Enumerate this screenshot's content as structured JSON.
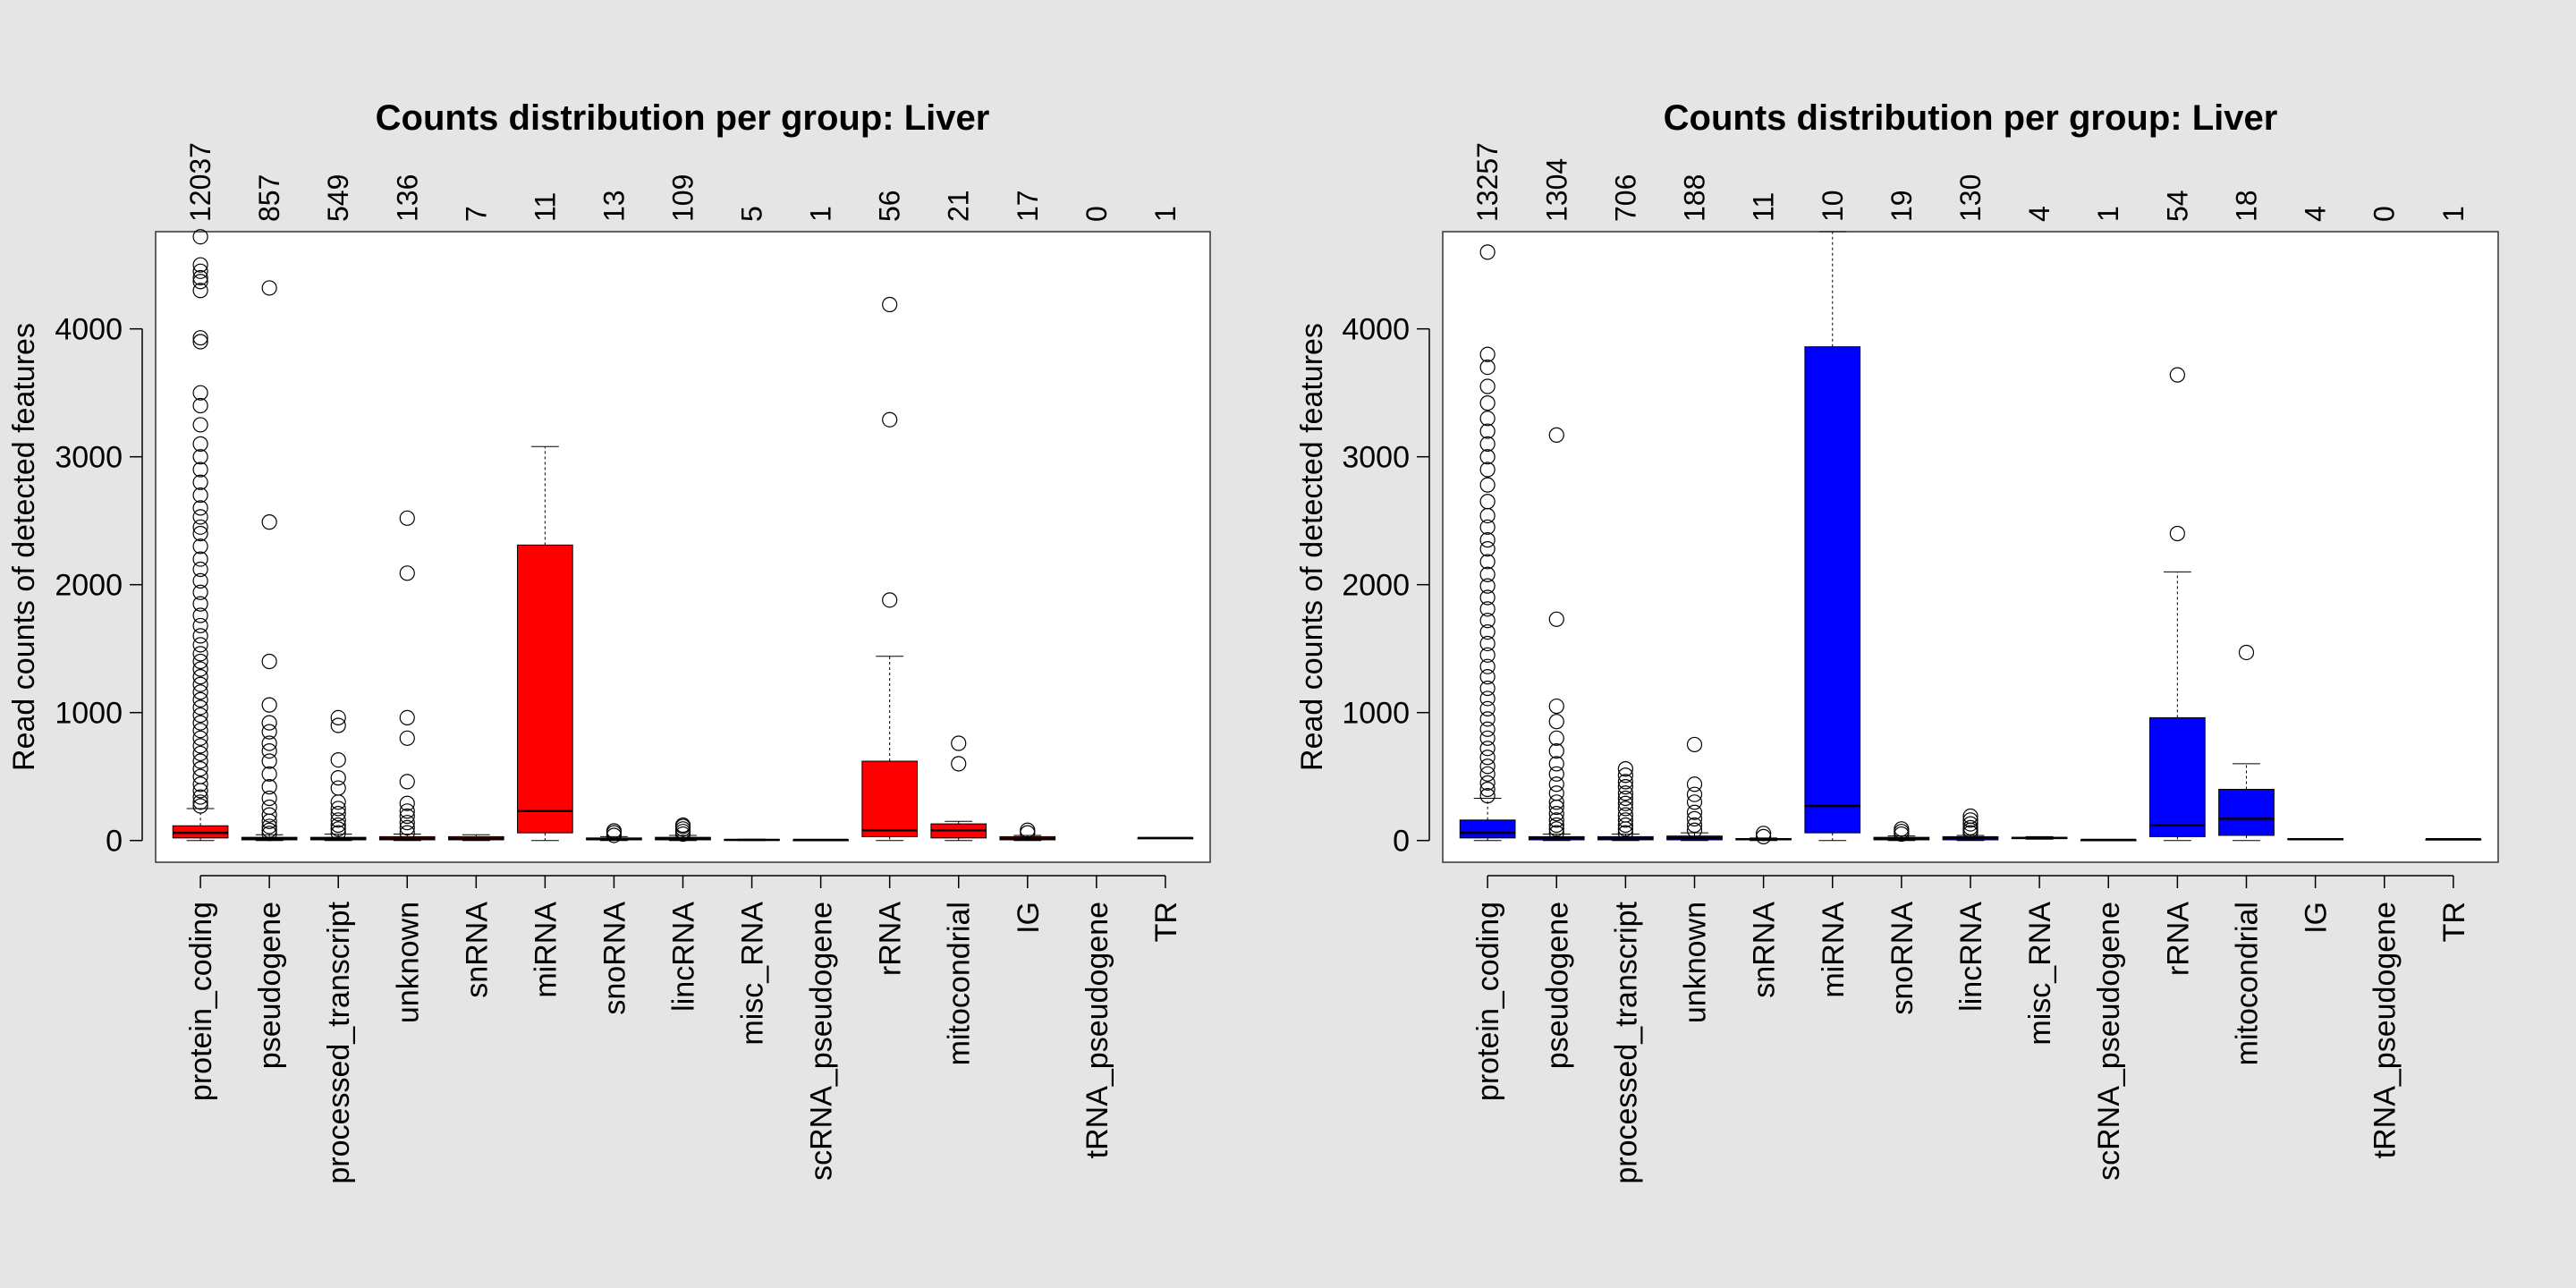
{
  "chart_data": [
    {
      "type": "boxplot",
      "title": "Counts distribution per group: Liver",
      "ylabel": "Read counts of detected features",
      "xlabel": "",
      "ylim": [
        -170,
        4760
      ],
      "yticks": [
        0,
        1000,
        2000,
        3000,
        4000
      ],
      "box_color": "#ff0000",
      "categories": [
        "protein_coding",
        "pseudogene",
        "processed_transcript",
        "unknown",
        "snRNA",
        "miRNA",
        "snoRNA",
        "lincRNA",
        "misc_RNA",
        "scRNA_pseudogene",
        "rRNA",
        "mitocondrial",
        "IG",
        "tRNA_pseudogene",
        "TR"
      ],
      "feature_counts": [
        "12037",
        "857",
        "549",
        "136",
        "7",
        "11",
        "13",
        "109",
        "5",
        "1",
        "56",
        "21",
        "17",
        "0",
        "1"
      ],
      "boxes": [
        {
          "min": 0,
          "q1": 20,
          "median": 60,
          "q3": 115,
          "max": 250,
          "outliers": [
            270,
            300,
            340,
            390,
            440,
            500,
            560,
            620,
            680,
            740,
            800,
            860,
            920,
            980,
            1040,
            1100,
            1160,
            1220,
            1280,
            1340,
            1400,
            1460,
            1530,
            1600,
            1680,
            1760,
            1850,
            1940,
            2030,
            2120,
            2200,
            2300,
            2400,
            2450,
            2530,
            2600,
            2700,
            2800,
            2900,
            3000,
            3100,
            3250,
            3400,
            3500,
            3900,
            3930,
            4300,
            4370,
            4400,
            4450,
            4500,
            4720
          ]
        },
        {
          "min": 0,
          "q1": 5,
          "median": 15,
          "q3": 25,
          "max": 45,
          "outliers": [
            55,
            80,
            110,
            150,
            200,
            260,
            330,
            420,
            520,
            620,
            700,
            760,
            850,
            920,
            1060,
            1400,
            2490,
            4320
          ]
        },
        {
          "min": 0,
          "q1": 5,
          "median": 15,
          "q3": 25,
          "max": 50,
          "outliers": [
            60,
            90,
            120,
            160,
            210,
            250,
            300,
            410,
            490,
            630,
            900,
            960
          ]
        },
        {
          "min": 0,
          "q1": 5,
          "median": 15,
          "q3": 30,
          "max": 50,
          "outliers": [
            60,
            100,
            140,
            190,
            230,
            290,
            460,
            800,
            960,
            2090,
            2520
          ]
        },
        {
          "min": 0,
          "q1": 5,
          "median": 15,
          "q3": 30,
          "max": 45,
          "outliers": []
        },
        {
          "min": 0,
          "q1": 60,
          "median": 230,
          "q3": 2310,
          "max": 3080,
          "outliers": []
        },
        {
          "min": 0,
          "q1": 5,
          "median": 10,
          "q3": 20,
          "max": 30,
          "outliers": [
            40,
            60,
            75
          ]
        },
        {
          "min": 0,
          "q1": 5,
          "median": 15,
          "q3": 25,
          "max": 40,
          "outliers": [
            50,
            70,
            90,
            110,
            120
          ]
        },
        {
          "min": 0,
          "q1": 2,
          "median": 5,
          "q3": 8,
          "max": 10,
          "outliers": []
        },
        {
          "min": 5,
          "q1": 5,
          "median": 5,
          "q3": 5,
          "max": 5,
          "outliers": []
        },
        {
          "min": 0,
          "q1": 30,
          "median": 80,
          "q3": 620,
          "max": 1440,
          "outliers": [
            1880,
            3290,
            4190
          ]
        },
        {
          "min": 0,
          "q1": 20,
          "median": 80,
          "q3": 130,
          "max": 150,
          "outliers": [
            600,
            760
          ]
        },
        {
          "min": 0,
          "q1": 5,
          "median": 15,
          "q3": 30,
          "max": 40,
          "outliers": [
            60,
            80
          ]
        },
        null,
        {
          "min": 20,
          "q1": 20,
          "median": 20,
          "q3": 20,
          "max": 20,
          "outliers": []
        }
      ]
    },
    {
      "type": "boxplot",
      "title": "Counts distribution per group: Liver",
      "ylabel": "Read counts of detected features",
      "xlabel": "",
      "ylim": [
        -170,
        4760
      ],
      "yticks": [
        0,
        1000,
        2000,
        3000,
        4000
      ],
      "box_color": "#0000ff",
      "categories": [
        "protein_coding",
        "pseudogene",
        "processed_transcript",
        "unknown",
        "snRNA",
        "miRNA",
        "snoRNA",
        "lincRNA",
        "misc_RNA",
        "scRNA_pseudogene",
        "rRNA",
        "mitocondrial",
        "IG",
        "tRNA_pseudogene",
        "TR"
      ],
      "feature_counts": [
        "13257",
        "1304",
        "706",
        "188",
        "11",
        "10",
        "19",
        "130",
        "4",
        "1",
        "54",
        "18",
        "4",
        "0",
        "1"
      ],
      "boxes": [
        {
          "min": 0,
          "q1": 20,
          "median": 60,
          "q3": 160,
          "max": 330,
          "outliers": [
            350,
            400,
            450,
            520,
            580,
            650,
            720,
            800,
            870,
            950,
            1030,
            1110,
            1190,
            1280,
            1360,
            1450,
            1540,
            1630,
            1720,
            1810,
            1900,
            1990,
            2080,
            2180,
            2280,
            2350,
            2450,
            2540,
            2650,
            2780,
            2900,
            3000,
            3100,
            3200,
            3300,
            3420,
            3550,
            3700,
            3800,
            4600
          ]
        },
        {
          "min": 0,
          "q1": 5,
          "median": 20,
          "q3": 30,
          "max": 50,
          "outliers": [
            60,
            90,
            120,
            160,
            210,
            260,
            300,
            370,
            440,
            520,
            600,
            700,
            800,
            930,
            1050,
            1730,
            3170
          ]
        },
        {
          "min": 0,
          "q1": 5,
          "median": 15,
          "q3": 30,
          "max": 50,
          "outliers": [
            60,
            90,
            120,
            160,
            200,
            250,
            290,
            330,
            370,
            420,
            460,
            510,
            560
          ]
        },
        {
          "min": 0,
          "q1": 5,
          "median": 20,
          "q3": 35,
          "max": 60,
          "outliers": [
            80,
            120,
            170,
            220,
            300,
            360,
            440,
            750
          ]
        },
        {
          "min": 0,
          "q1": 5,
          "median": 10,
          "q3": 15,
          "max": 20,
          "outliers": [
            30,
            55
          ]
        },
        {
          "min": 0,
          "q1": 60,
          "median": 270,
          "q3": 3860,
          "max": 4760,
          "outliers": []
        },
        {
          "min": 0,
          "q1": 5,
          "median": 15,
          "q3": 25,
          "max": 35,
          "outliers": [
            50,
            70,
            90
          ]
        },
        {
          "min": 0,
          "q1": 5,
          "median": 20,
          "q3": 30,
          "max": 40,
          "outliers": [
            60,
            80,
            100,
            130,
            160,
            190
          ]
        },
        {
          "min": 10,
          "q1": 15,
          "median": 20,
          "q3": 25,
          "max": 30,
          "outliers": []
        },
        {
          "min": 5,
          "q1": 5,
          "median": 5,
          "q3": 5,
          "max": 5,
          "outliers": []
        },
        {
          "min": 0,
          "q1": 30,
          "median": 120,
          "q3": 960,
          "max": 2100,
          "outliers": [
            2400,
            3640
          ]
        },
        {
          "min": 0,
          "q1": 40,
          "median": 170,
          "q3": 400,
          "max": 600,
          "outliers": [
            1470
          ]
        },
        {
          "min": 5,
          "q1": 5,
          "median": 10,
          "q3": 15,
          "max": 15,
          "outliers": []
        },
        null,
        {
          "min": 10,
          "q1": 10,
          "median": 10,
          "q3": 10,
          "max": 10,
          "outliers": []
        }
      ]
    }
  ]
}
